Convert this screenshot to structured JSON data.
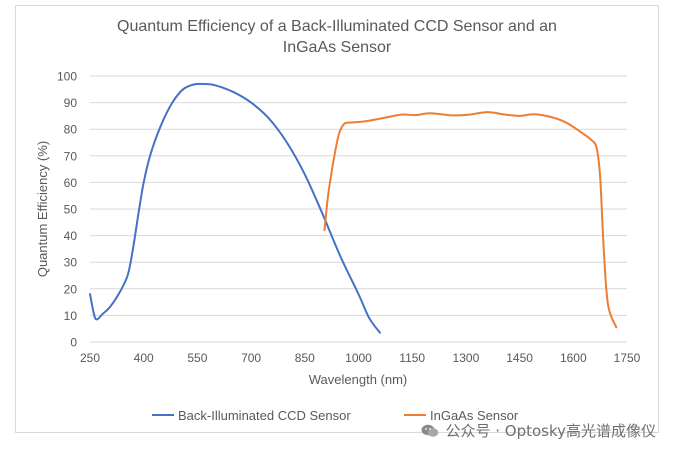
{
  "chart_data": {
    "type": "line",
    "title_line1": "Quantum Efficiency of a Back-Illuminated CCD Sensor and an",
    "title_line2": "InGaAs Sensor",
    "xlabel": "Wavelength (nm)",
    "ylabel": "Quantum Efficiency (%)",
    "xlim": [
      250,
      1750
    ],
    "ylim": [
      0,
      100
    ],
    "x_ticks": [
      250,
      400,
      550,
      700,
      850,
      1000,
      1150,
      1300,
      1450,
      1600,
      1750
    ],
    "y_ticks": [
      0,
      10,
      20,
      30,
      40,
      50,
      60,
      70,
      80,
      90,
      100
    ],
    "grid": true,
    "legend_position": "bottom",
    "series": [
      {
        "name": "Back-Illuminated CCD Sensor",
        "color": "#4472c4",
        "points": [
          [
            250,
            18
          ],
          [
            262,
            10
          ],
          [
            270,
            8.5
          ],
          [
            285,
            10.5
          ],
          [
            305,
            13
          ],
          [
            330,
            18
          ],
          [
            355,
            25
          ],
          [
            370,
            35
          ],
          [
            385,
            48
          ],
          [
            400,
            60
          ],
          [
            420,
            71
          ],
          [
            450,
            82
          ],
          [
            480,
            90
          ],
          [
            510,
            95
          ],
          [
            540,
            96.8
          ],
          [
            570,
            97
          ],
          [
            600,
            96.5
          ],
          [
            650,
            94
          ],
          [
            700,
            90
          ],
          [
            750,
            84
          ],
          [
            800,
            75
          ],
          [
            850,
            63
          ],
          [
            900,
            48
          ],
          [
            950,
            32
          ],
          [
            1000,
            18
          ],
          [
            1030,
            9
          ],
          [
            1060,
            3.5
          ]
        ]
      },
      {
        "name": "InGaAs Sensor",
        "color": "#ed7d31",
        "points": [
          [
            905,
            42
          ],
          [
            915,
            55
          ],
          [
            930,
            68
          ],
          [
            945,
            78
          ],
          [
            960,
            82
          ],
          [
            980,
            82.5
          ],
          [
            1020,
            83
          ],
          [
            1080,
            84.5
          ],
          [
            1120,
            85.5
          ],
          [
            1160,
            85.3
          ],
          [
            1200,
            86
          ],
          [
            1260,
            85.2
          ],
          [
            1310,
            85.5
          ],
          [
            1360,
            86.4
          ],
          [
            1410,
            85.5
          ],
          [
            1450,
            85
          ],
          [
            1490,
            85.6
          ],
          [
            1540,
            84.5
          ],
          [
            1580,
            82.5
          ],
          [
            1620,
            79
          ],
          [
            1650,
            76
          ],
          [
            1665,
            73
          ],
          [
            1675,
            62
          ],
          [
            1685,
            35
          ],
          [
            1697,
            14
          ],
          [
            1720,
            5.5
          ]
        ]
      }
    ]
  },
  "watermark": {
    "text": "公众号 · Optosky高光谱成像仪",
    "icon": "wechat-icon"
  }
}
